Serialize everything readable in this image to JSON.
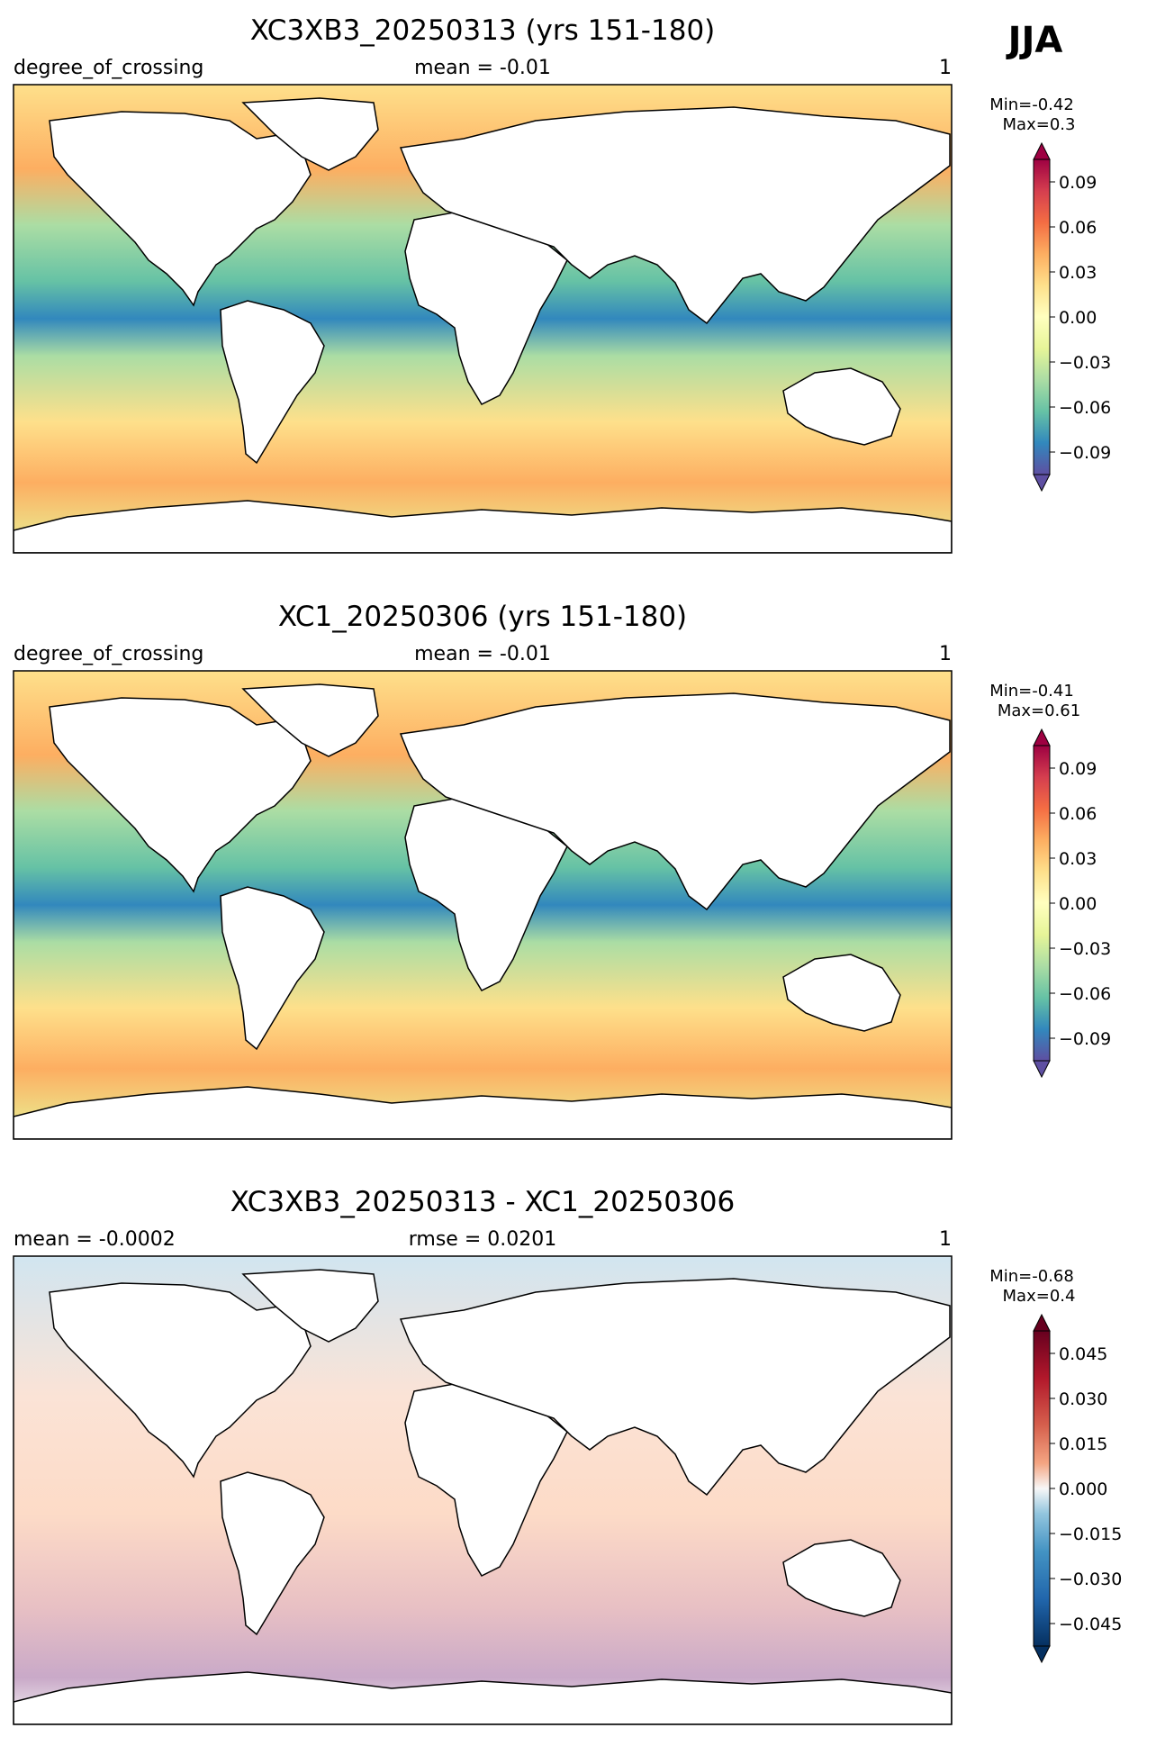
{
  "season_label": "JJA",
  "chart_data": [
    {
      "type": "heatmap",
      "title": "XC3XB3_20250313 (yrs 151-180)",
      "left_label": "degree_of_crossing",
      "center_label": "mean = -0.01",
      "right_label": "1",
      "minmax": [
        "Min=-0.42",
        "Max=0.3"
      ],
      "colormap": "Spectral_r",
      "colorbar_ticks": [
        "0.09",
        "0.06",
        "0.03",
        "0.00",
        "−0.03",
        "−0.06",
        "−0.09"
      ],
      "colorbar_range": [
        -0.105,
        0.105
      ],
      "extend": "both"
    },
    {
      "type": "heatmap",
      "title": "XC1_20250306 (yrs 151-180)",
      "left_label": "degree_of_crossing",
      "center_label": "mean = -0.01",
      "right_label": "1",
      "minmax": [
        "Min=-0.41",
        "Max=0.61"
      ],
      "colormap": "Spectral_r",
      "colorbar_ticks": [
        "0.09",
        "0.06",
        "0.03",
        "0.00",
        "−0.03",
        "−0.06",
        "−0.09"
      ],
      "colorbar_range": [
        -0.105,
        0.105
      ],
      "extend": "both"
    },
    {
      "type": "heatmap",
      "title": "XC3XB3_20250313 - XC1_20250306",
      "left_label": "mean = -0.0002",
      "center_label": "rmse = 0.0201",
      "right_label": "1",
      "minmax": [
        "Min=-0.68",
        "Max=0.4"
      ],
      "colormap": "RdBu_r",
      "colorbar_ticks": [
        "0.045",
        "0.030",
        "0.015",
        "0.000",
        "−0.015",
        "−0.030",
        "−0.045"
      ],
      "colorbar_range": [
        -0.0525,
        0.0525
      ],
      "extend": "both"
    }
  ]
}
